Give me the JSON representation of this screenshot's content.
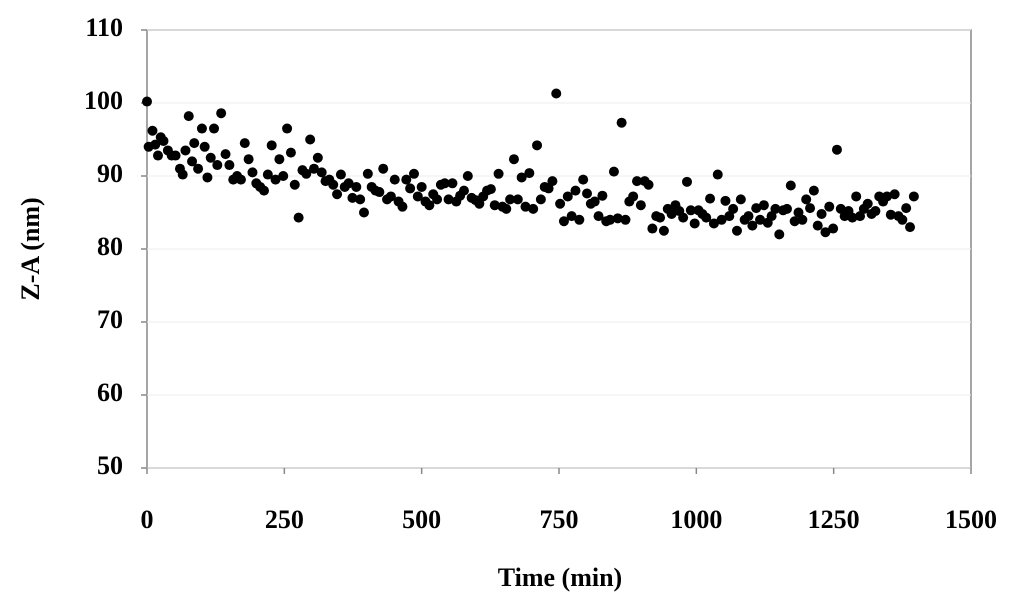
{
  "chart_data": {
    "type": "scatter",
    "x_label": "Time (min)",
    "y_label": "Z-A (nm)",
    "color": "#000000",
    "grid": true,
    "xlim": [
      0,
      1500
    ],
    "xticks": [
      0,
      250,
      500,
      750,
      1000,
      1250,
      1500
    ],
    "ylim": [
      50,
      110
    ],
    "yticks": [
      50,
      60,
      70,
      80,
      90,
      100,
      110
    ],
    "x": [
      0,
      3,
      10,
      15,
      20,
      25,
      30,
      38,
      45,
      52,
      60,
      65,
      70,
      76,
      82,
      86,
      93,
      100,
      105,
      110,
      116,
      122,
      128,
      135,
      143,
      150,
      157,
      164,
      171,
      178,
      185,
      192,
      199,
      206,
      213,
      220,
      227,
      234,
      241,
      248,
      255,
      262,
      269,
      276,
      283,
      290,
      297,
      304,
      311,
      318,
      325,
      332,
      339,
      346,
      353,
      360,
      367,
      374,
      381,
      388,
      395,
      402,
      409,
      416,
      423,
      430,
      437,
      444,
      451,
      458,
      465,
      472,
      479,
      486,
      493,
      500,
      507,
      514,
      521,
      528,
      535,
      542,
      549,
      556,
      563,
      570,
      577,
      584,
      591,
      598,
      605,
      612,
      619,
      626,
      633,
      640,
      647,
      654,
      661,
      668,
      675,
      682,
      689,
      696,
      703,
      710,
      717,
      724,
      731,
      738,
      745,
      752,
      759,
      766,
      773,
      780,
      787,
      794,
      801,
      808,
      815,
      822,
      829,
      836,
      843,
      850,
      857,
      864,
      871,
      878,
      885,
      892,
      899,
      906,
      913,
      920,
      927,
      934,
      941,
      948,
      955,
      962,
      969,
      976,
      983,
      990,
      997,
      1004,
      1011,
      1018,
      1025,
      1032,
      1039,
      1046,
      1053,
      1060,
      1067,
      1074,
      1081,
      1088,
      1095,
      1102,
      1109,
      1116,
      1123,
      1130,
      1137,
      1144,
      1151,
      1158,
      1165,
      1172,
      1179,
      1186,
      1193,
      1200,
      1207,
      1214,
      1221,
      1228,
      1235,
      1242,
      1249,
      1256,
      1263,
      1270,
      1277,
      1284,
      1291,
      1298,
      1305,
      1312,
      1319,
      1326,
      1333,
      1340,
      1347,
      1354,
      1361,
      1368,
      1375,
      1382,
      1389,
      1396
    ],
    "values": [
      100.2,
      94,
      96.2,
      94.3,
      92.8,
      95.3,
      94.8,
      93.5,
      92.8,
      92.8,
      91,
      90.2,
      93.5,
      98.2,
      92,
      94.5,
      91,
      96.5,
      94,
      89.8,
      92.5,
      96.5,
      91.5,
      98.6,
      93,
      91.5,
      89.5,
      90,
      89.5,
      94.5,
      92.3,
      90.5,
      89,
      88.5,
      88,
      90.2,
      94.2,
      89.5,
      92.3,
      90,
      96.5,
      93.2,
      88.8,
      84.3,
      90.8,
      90.3,
      95,
      91,
      92.5,
      90.5,
      89.3,
      89.5,
      88.8,
      87.5,
      90.2,
      88.5,
      89,
      87,
      88.5,
      86.8,
      85,
      90.3,
      88.5,
      88,
      87.8,
      91,
      86.8,
      87.2,
      89.5,
      86.5,
      85.8,
      89.5,
      88.3,
      90.3,
      87.2,
      88.5,
      86.5,
      86,
      87.5,
      86.8,
      88.8,
      89,
      86.8,
      89,
      86.5,
      87.3,
      88,
      90,
      87,
      86.7,
      86.2,
      87.2,
      88,
      88.2,
      86,
      90.3,
      85.8,
      85.5,
      86.8,
      92.3,
      86.8,
      89.8,
      85.8,
      90.4,
      85.5,
      94.2,
      86.8,
      88.5,
      88.3,
      89.3,
      101.3,
      86.2,
      83.8,
      87.2,
      84.5,
      88,
      84,
      89.5,
      87.6,
      86.2,
      86.5,
      84.5,
      87.3,
      83.8,
      84,
      90.6,
      84.2,
      97.3,
      84,
      86.5,
      87.2,
      89.3,
      86,
      89.3,
      88.8,
      82.8,
      84.5,
      84.3,
      82.5,
      85.5,
      84.8,
      86,
      85.2,
      84.3,
      89.2,
      85.3,
      83.5,
      85.3,
      84.8,
      84.3,
      86.9,
      83.5,
      90.2,
      84,
      86.6,
      84.5,
      85.5,
      82.5,
      86.8,
      84,
      84.5,
      83.2,
      85.6,
      84,
      86,
      83.6,
      84.5,
      85.5,
      82,
      85.3,
      85.5,
      88.7,
      83.8,
      85,
      84,
      86.8,
      85.6,
      88,
      83.2,
      84.8,
      82.3,
      85.8,
      82.8,
      93.6,
      85.5,
      84.5,
      85.2,
      84.3,
      87.2,
      84.5,
      85.5,
      86.2,
      84.8,
      85.2,
      87.2,
      86.5,
      87.2,
      84.7,
      87.5,
      84.5,
      84,
      85.6,
      83,
      87.2
    ]
  }
}
